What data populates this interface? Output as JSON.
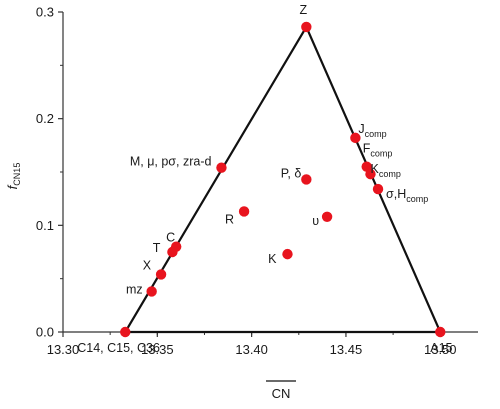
{
  "chart_data": {
    "type": "scatter",
    "title": "",
    "xlabel": "CN",
    "ylabel": "f",
    "ylabel_sub": "CN15",
    "xlim": [
      13.3,
      13.52
    ],
    "ylim": [
      0.0,
      0.3
    ],
    "x_ticks": [
      "13.30",
      "13.35",
      "13.40",
      "13.45",
      "13.50"
    ],
    "y_ticks": [
      "0.0",
      "0.1",
      "0.2",
      "0.3"
    ],
    "triangle_vertices": [
      "C14, C15, C36",
      "A15",
      "Z"
    ],
    "points": [
      {
        "label": "C14, C15, C36",
        "x": 13.333,
        "y": 0.0
      },
      {
        "label": "A15",
        "x": 13.5,
        "y": 0.0
      },
      {
        "label": "Z",
        "x": 13.429,
        "y": 0.286
      },
      {
        "label": "M, μ, pσ, zra-d",
        "x": 13.384,
        "y": 0.154
      },
      {
        "label": "C",
        "x": 13.36,
        "y": 0.08
      },
      {
        "label": "T",
        "x": 13.358,
        "y": 0.075
      },
      {
        "label": "X",
        "x": 13.352,
        "y": 0.054
      },
      {
        "label": "mz",
        "x": 13.347,
        "y": 0.038
      },
      {
        "label": "P, δ",
        "x": 13.429,
        "y": 0.143
      },
      {
        "label": "R",
        "x": 13.396,
        "y": 0.113
      },
      {
        "label": "υ",
        "x": 13.44,
        "y": 0.108
      },
      {
        "label": "K",
        "x": 13.419,
        "y": 0.073
      },
      {
        "label": "J",
        "label_sub": "comp",
        "x": 13.455,
        "y": 0.182
      },
      {
        "label": "F",
        "label_sub": "comp",
        "x": 13.461,
        "y": 0.155
      },
      {
        "label": "K",
        "label_sub": "comp",
        "x": 13.463,
        "y": 0.148
      },
      {
        "label": "σ,H",
        "label_sub": "comp",
        "x": 13.467,
        "y": 0.134
      }
    ],
    "grid": false,
    "marker_color": "#e8141e",
    "line_color": "#111111"
  }
}
